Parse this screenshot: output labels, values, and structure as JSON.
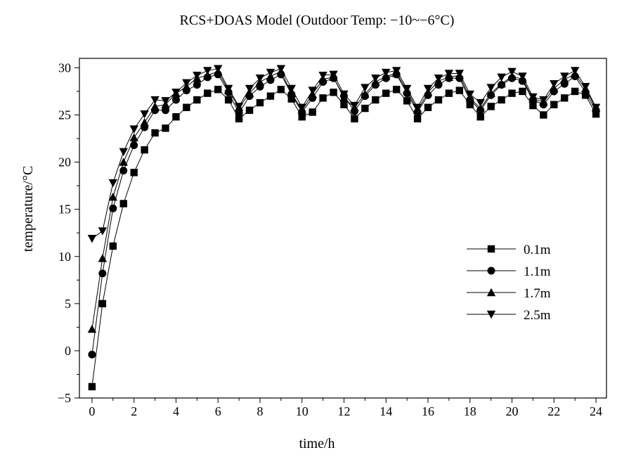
{
  "chart_data": {
    "type": "line",
    "title": "RCS+DOAS Model (Outdoor Temp: −10~−6°C)",
    "xlabel": "time/h",
    "ylabel": "temperature/°C",
    "xlim": [
      -0.6,
      24.5
    ],
    "ylim": [
      -5,
      31
    ],
    "xticks": [
      0,
      2,
      4,
      6,
      8,
      10,
      12,
      14,
      16,
      18,
      20,
      22,
      24
    ],
    "yticks": [
      -5,
      0,
      5,
      10,
      15,
      20,
      25,
      30
    ],
    "xtick_labels": [
      "0",
      "2",
      "4",
      "6",
      "8",
      "10",
      "12",
      "14",
      "16",
      "18",
      "20",
      "22",
      "24"
    ],
    "ytick_labels": [
      "−5",
      "0",
      "5",
      "10",
      "15",
      "20",
      "25",
      "30"
    ],
    "grid": false,
    "legend_position": "right-middle",
    "x": [
      0,
      0.5,
      1,
      1.5,
      2,
      2.5,
      3,
      3.5,
      4,
      4.5,
      5,
      5.5,
      6,
      6.5,
      7,
      7.5,
      8,
      8.5,
      9,
      9.5,
      10,
      10.5,
      11,
      11.5,
      12,
      12.5,
      13,
      13.5,
      14,
      14.5,
      15,
      15.5,
      16,
      16.5,
      17,
      17.5,
      18,
      18.5,
      19,
      19.5,
      20,
      20.5,
      21,
      21.5,
      22,
      22.5,
      23,
      23.5,
      24
    ],
    "series": [
      {
        "name": "0.1m",
        "marker": "square",
        "values": [
          -3.8,
          5.0,
          11.1,
          15.6,
          18.9,
          21.3,
          23.1,
          23.6,
          24.8,
          25.8,
          26.6,
          27.3,
          27.7,
          26.6,
          24.6,
          25.5,
          26.3,
          27.0,
          27.7,
          26.7,
          24.8,
          25.3,
          26.8,
          27.4,
          26.1,
          24.6,
          25.7,
          26.6,
          27.3,
          27.7,
          26.5,
          24.6,
          25.8,
          26.6,
          27.3,
          27.6,
          26.1,
          24.8,
          25.9,
          26.6,
          27.3,
          27.5,
          26.0,
          25.0,
          26.1,
          26.8,
          27.5,
          27.1,
          25.1
        ]
      },
      {
        "name": "1.1m",
        "marker": "circle",
        "values": [
          -0.4,
          8.2,
          15.1,
          19.1,
          21.8,
          23.7,
          25.5,
          25.5,
          26.6,
          27.6,
          28.2,
          29.0,
          29.3,
          27.4,
          25.2,
          27.0,
          28.0,
          28.7,
          29.3,
          27.2,
          25.3,
          26.8,
          28.5,
          28.9,
          27.0,
          25.4,
          27.0,
          28.2,
          28.9,
          29.3,
          27.3,
          25.3,
          27.1,
          28.2,
          28.9,
          28.9,
          26.6,
          25.5,
          27.1,
          28.2,
          28.9,
          28.6,
          26.6,
          26.1,
          27.5,
          28.3,
          29.1,
          27.4,
          25.5
        ]
      },
      {
        "name": "1.7m",
        "marker": "triangle-up",
        "values": [
          2.3,
          9.8,
          16.3,
          20.0,
          22.6,
          24.2,
          25.9,
          26.1,
          27.3,
          28.0,
          28.9,
          29.2,
          29.6,
          27.6,
          25.8,
          27.3,
          28.5,
          29.1,
          29.6,
          27.3,
          25.5,
          27.2,
          28.8,
          29.0,
          26.8,
          25.8,
          27.2,
          28.5,
          29.1,
          29.4,
          27.6,
          25.5,
          27.4,
          28.6,
          29.0,
          29.2,
          26.8,
          25.7,
          27.3,
          28.3,
          29.1,
          28.8,
          26.7,
          26.4,
          27.8,
          28.8,
          29.3,
          27.8,
          25.7
        ]
      },
      {
        "name": "2.5m",
        "marker": "triangle-down",
        "values": [
          11.9,
          12.7,
          17.8,
          21.1,
          23.5,
          25.1,
          26.6,
          26.5,
          27.4,
          28.4,
          29.2,
          29.7,
          29.9,
          27.8,
          25.9,
          27.8,
          28.9,
          29.5,
          29.9,
          27.8,
          25.8,
          27.6,
          29.2,
          29.3,
          27.2,
          26.0,
          27.9,
          28.9,
          29.5,
          29.7,
          27.8,
          25.8,
          27.8,
          28.9,
          29.4,
          29.4,
          27.2,
          26.3,
          27.9,
          29.0,
          29.6,
          29.1,
          26.9,
          26.6,
          28.3,
          29.1,
          29.7,
          28.0,
          25.8
        ]
      }
    ]
  }
}
